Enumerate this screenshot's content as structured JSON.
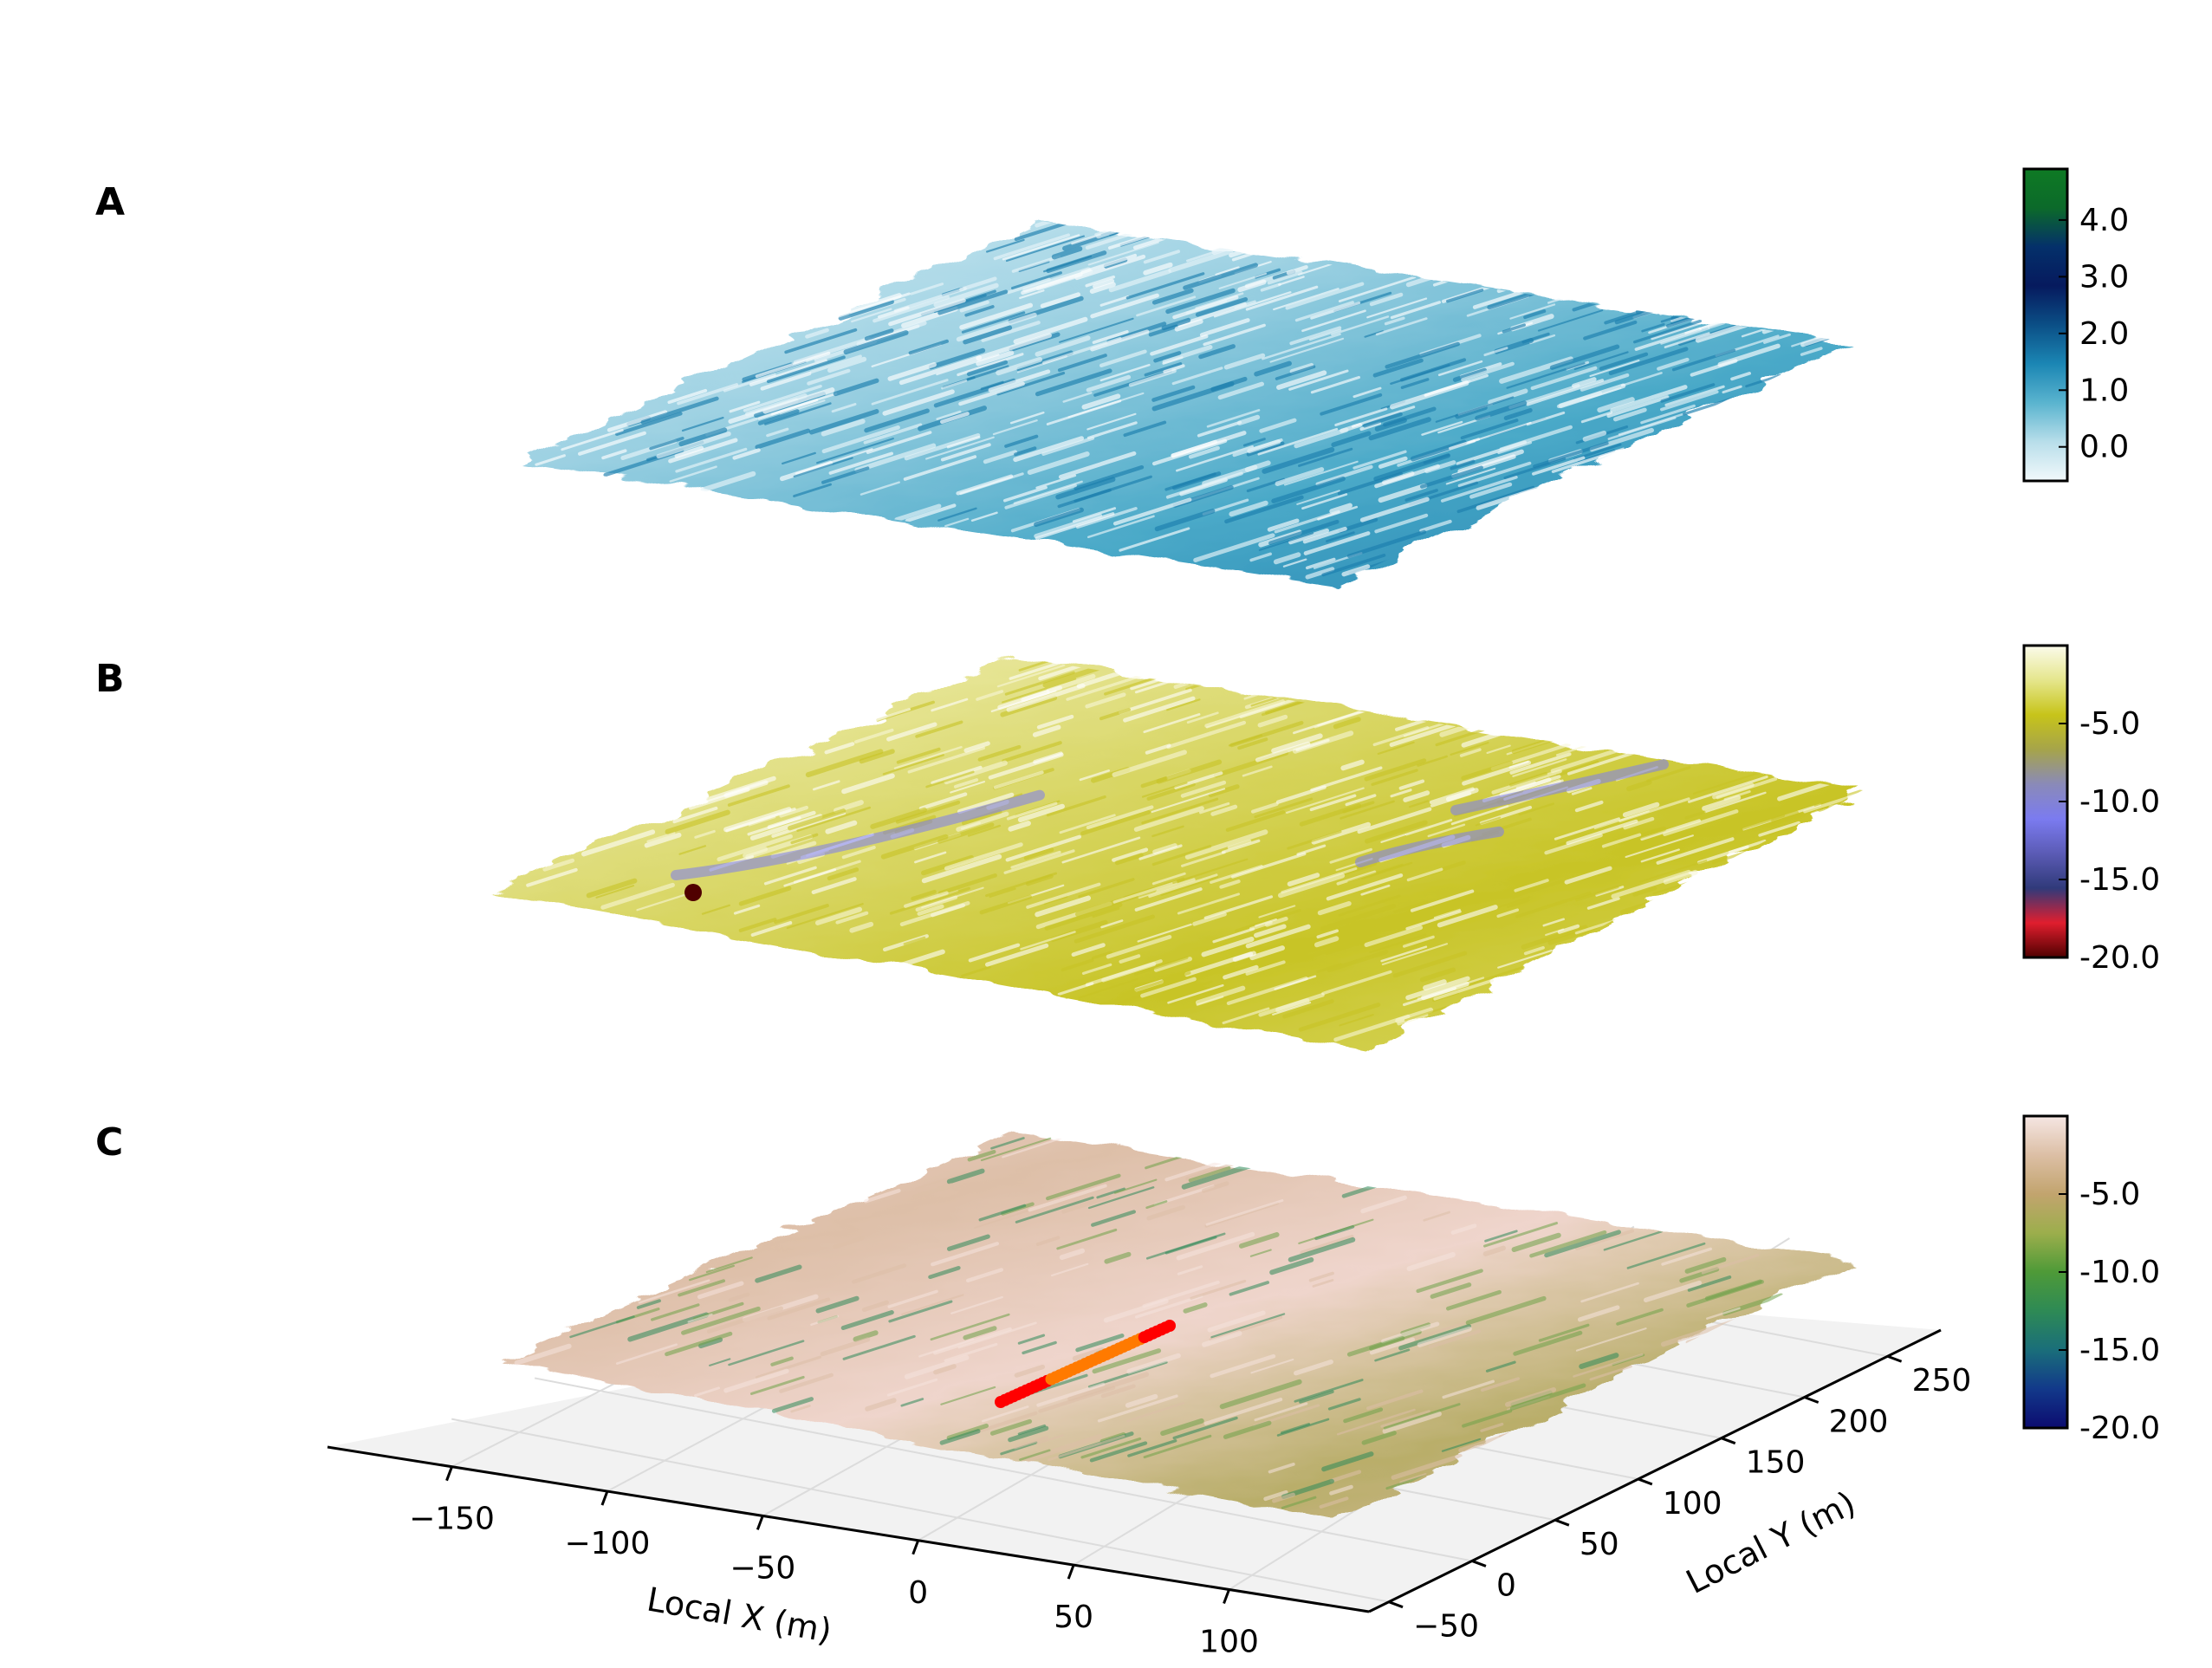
{
  "chart_data": [
    {
      "type": "surface3d",
      "panel": "A",
      "colorbar": {
        "ticks": [
          0.0,
          1.0,
          2.0,
          3.0,
          4.0
        ],
        "tick_labels": [
          "0.0",
          "1.0",
          "2.0",
          "3.0",
          "4.0"
        ],
        "range": [
          -0.6,
          4.9
        ],
        "colors": [
          "#f2f9fb",
          "#b8deea",
          "#5ab4cf",
          "#1b86b4",
          "#0b4f86",
          "#061a5e",
          "#04306a",
          "#0c6a2a",
          "#0e7a24"
        ]
      },
      "surface_colors": [
        "#d7eef5",
        "#9fd2e3",
        "#4aa9c8",
        "#1c7fae",
        "#0b3d7a"
      ]
    },
    {
      "type": "surface3d",
      "panel": "B",
      "colorbar": {
        "ticks": [
          -5.0,
          -10.0,
          -15.0,
          -20.0
        ],
        "tick_labels": [
          "-5.0",
          "-10.0",
          "-15.0",
          "-20.0"
        ],
        "range": [
          -20.0,
          0.0
        ],
        "colors": [
          "#fbfbeb",
          "#e5e68c",
          "#c7c41a",
          "#a6a44a",
          "#8a8ab8",
          "#7b7bf0",
          "#5b5bb5",
          "#303a7a",
          "#e01e2e",
          "#500000"
        ]
      },
      "surface_colors": [
        "#f4f3c4",
        "#dcda72",
        "#c8c426",
        "#9a9adc",
        "#7b7bf0"
      ]
    },
    {
      "type": "surface3d",
      "panel": "C",
      "colorbar": {
        "ticks": [
          -5.0,
          -10.0,
          -15.0,
          -20.0
        ],
        "tick_labels": [
          "-5.0",
          "-10.0",
          "-15.0",
          "-20.0"
        ],
        "range": [
          -20.0,
          0.0
        ],
        "colors": [
          "#f5e6e3",
          "#dcbfa5",
          "#c2a46e",
          "#9cae4c",
          "#4e9a38",
          "#2e8a55",
          "#1a6e7a",
          "#12398a",
          "#0c0c70"
        ]
      },
      "surface_colors": [
        "#efd5cc",
        "#ddbfa8",
        "#b9ae6a",
        "#6fa24a",
        "#2f8a5a"
      ],
      "x_axis": {
        "label": "Local X (m)",
        "ticks": [
          -150,
          -100,
          -50,
          0,
          50,
          100
        ],
        "tick_labels": [
          "−150",
          "−100",
          "−50",
          "0",
          "50",
          "100"
        ]
      },
      "y_axis": {
        "label": "Local Y (m)",
        "ticks": [
          -50,
          0,
          50,
          100,
          150,
          200,
          250
        ],
        "tick_labels": [
          "−50",
          "0",
          "50",
          "100",
          "150",
          "200",
          "250"
        ]
      },
      "track_colors": [
        "#ff0000",
        "#ff7a00",
        "#ff9a10"
      ]
    }
  ],
  "panels": {
    "a": {
      "letter": "A"
    },
    "b": {
      "letter": "B"
    },
    "c": {
      "letter": "C"
    }
  }
}
